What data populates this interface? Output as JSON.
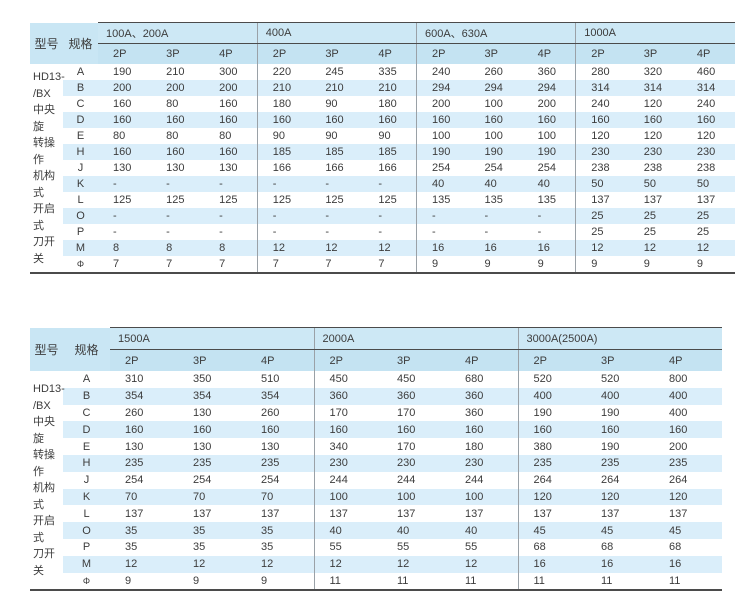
{
  "colors": {
    "header_group_bg": "#cde8f5",
    "header_subcol_bg": "#c4e3f2",
    "stripe_bg": "#daeefa",
    "border_dark": "#4b4b4b",
    "divider_gray": "#9aa1a7",
    "text": "#3c3c3c"
  },
  "tables": [
    {
      "model_header": "型号",
      "spec_header": "规格",
      "model_lines": [
        "HD13-",
        "/BX",
        "中央旋",
        "转操作",
        "机构式",
        "开启式",
        "刀开关"
      ],
      "groups": [
        {
          "label": "100A、200A",
          "subcols": [
            "2P",
            "3P",
            "4P"
          ]
        },
        {
          "label": "400A",
          "subcols": [
            "2P",
            "3P",
            "4P"
          ]
        },
        {
          "label": "600A、630A",
          "subcols": [
            "2P",
            "3P",
            "4P"
          ]
        },
        {
          "label": "1000A",
          "subcols": [
            "2P",
            "3P",
            "4P"
          ]
        }
      ],
      "rows": [
        {
          "spec": "A",
          "values": [
            "190",
            "210",
            "300",
            "220",
            "245",
            "335",
            "240",
            "260",
            "360",
            "280",
            "320",
            "460"
          ]
        },
        {
          "spec": "B",
          "values": [
            "200",
            "200",
            "200",
            "210",
            "210",
            "210",
            "294",
            "294",
            "294",
            "314",
            "314",
            "314"
          ]
        },
        {
          "spec": "C",
          "values": [
            "160",
            "80",
            "160",
            "180",
            "90",
            "180",
            "200",
            "100",
            "200",
            "240",
            "120",
            "240"
          ]
        },
        {
          "spec": "D",
          "values": [
            "160",
            "160",
            "160",
            "160",
            "160",
            "160",
            "160",
            "160",
            "160",
            "160",
            "160",
            "160"
          ]
        },
        {
          "spec": "E",
          "values": [
            "80",
            "80",
            "80",
            "90",
            "90",
            "90",
            "100",
            "100",
            "100",
            "120",
            "120",
            "120"
          ]
        },
        {
          "spec": "H",
          "values": [
            "160",
            "160",
            "160",
            "185",
            "185",
            "185",
            "190",
            "190",
            "190",
            "230",
            "230",
            "230"
          ]
        },
        {
          "spec": "J",
          "values": [
            "130",
            "130",
            "130",
            "166",
            "166",
            "166",
            "254",
            "254",
            "254",
            "238",
            "238",
            "238"
          ]
        },
        {
          "spec": "K",
          "values": [
            "-",
            "-",
            "-",
            "-",
            "-",
            "-",
            "40",
            "40",
            "40",
            "50",
            "50",
            "50"
          ]
        },
        {
          "spec": "L",
          "values": [
            "125",
            "125",
            "125",
            "125",
            "125",
            "125",
            "135",
            "135",
            "135",
            "137",
            "137",
            "137"
          ]
        },
        {
          "spec": "O",
          "values": [
            "-",
            "-",
            "-",
            "-",
            "-",
            "-",
            "-",
            "-",
            "-",
            "25",
            "25",
            "25"
          ]
        },
        {
          "spec": "P",
          "values": [
            "-",
            "-",
            "-",
            "-",
            "-",
            "-",
            "-",
            "-",
            "-",
            "25",
            "25",
            "25"
          ]
        },
        {
          "spec": "M",
          "values": [
            "8",
            "8",
            "8",
            "12",
            "12",
            "12",
            "16",
            "16",
            "16",
            "12",
            "12",
            "12"
          ]
        },
        {
          "spec": "Φ",
          "values": [
            "7",
            "7",
            "7",
            "7",
            "7",
            "7",
            "9",
            "9",
            "9",
            "9",
            "9",
            "9"
          ]
        }
      ]
    },
    {
      "model_header": "型号",
      "spec_header": "规格",
      "model_lines": [
        "HD13-",
        "/BX",
        "中央旋",
        "转操作",
        "机构式",
        "开启式",
        "刀开关"
      ],
      "groups": [
        {
          "label": "1500A",
          "subcols": [
            "2P",
            "3P",
            "4P"
          ]
        },
        {
          "label": "2000A",
          "subcols": [
            "2P",
            "3P",
            "4P"
          ]
        },
        {
          "label": "3000A(2500A)",
          "subcols": [
            "2P",
            "3P",
            "4P"
          ]
        }
      ],
      "rows": [
        {
          "spec": "A",
          "values": [
            "310",
            "350",
            "510",
            "450",
            "450",
            "680",
            "520",
            "520",
            "800"
          ]
        },
        {
          "spec": "B",
          "values": [
            "354",
            "354",
            "354",
            "360",
            "360",
            "360",
            "400",
            "400",
            "400"
          ]
        },
        {
          "spec": "C",
          "values": [
            "260",
            "130",
            "260",
            "170",
            "170",
            "360",
            "190",
            "190",
            "400"
          ]
        },
        {
          "spec": "D",
          "values": [
            "160",
            "160",
            "160",
            "160",
            "160",
            "160",
            "160",
            "160",
            "160"
          ]
        },
        {
          "spec": "E",
          "values": [
            "130",
            "130",
            "130",
            "340",
            "170",
            "180",
            "380",
            "190",
            "200"
          ]
        },
        {
          "spec": "H",
          "values": [
            "235",
            "235",
            "235",
            "230",
            "230",
            "230",
            "235",
            "235",
            "235"
          ]
        },
        {
          "spec": "J",
          "values": [
            "254",
            "254",
            "254",
            "244",
            "244",
            "244",
            "264",
            "264",
            "264"
          ]
        },
        {
          "spec": "K",
          "values": [
            "70",
            "70",
            "70",
            "100",
            "100",
            "100",
            "120",
            "120",
            "120"
          ]
        },
        {
          "spec": "L",
          "values": [
            "137",
            "137",
            "137",
            "137",
            "137",
            "137",
            "137",
            "137",
            "137"
          ]
        },
        {
          "spec": "O",
          "values": [
            "35",
            "35",
            "35",
            "40",
            "40",
            "40",
            "45",
            "45",
            "45"
          ]
        },
        {
          "spec": "P",
          "values": [
            "35",
            "35",
            "35",
            "55",
            "55",
            "55",
            "68",
            "68",
            "68"
          ]
        },
        {
          "spec": "M",
          "values": [
            "12",
            "12",
            "12",
            "12",
            "12",
            "12",
            "16",
            "16",
            "16"
          ]
        },
        {
          "spec": "Φ",
          "values": [
            "9",
            "9",
            "9",
            "11",
            "11",
            "11",
            "11",
            "11",
            "11"
          ]
        }
      ]
    }
  ]
}
